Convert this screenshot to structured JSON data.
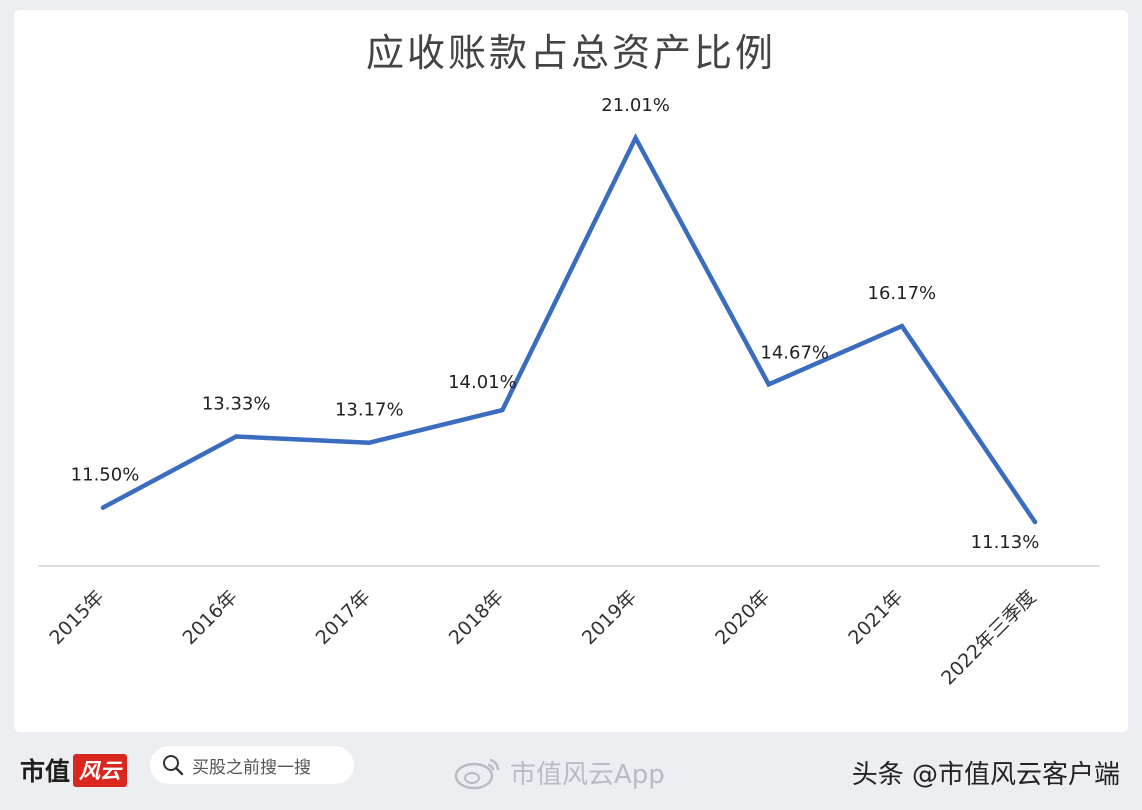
{
  "chart_data": {
    "type": "line",
    "title": "应收账款占总资产比例",
    "categories": [
      "2015年",
      "2016年",
      "2017年",
      "2018年",
      "2019年",
      "2020年",
      "2021年",
      "2022年三季度"
    ],
    "series": [
      {
        "values": [
          11.5,
          13.33,
          13.17,
          14.01,
          21.01,
          14.67,
          16.17,
          11.13
        ],
        "labels": [
          "11.50%",
          "13.33%",
          "13.17%",
          "14.01%",
          "21.01%",
          "14.67%",
          "16.17%",
          "11.13%"
        ],
        "color": "#3a6cc0"
      }
    ],
    "ylim": [
      7.5,
      22.5
    ],
    "grid": false,
    "legend": "none"
  },
  "footer": {
    "brand": "市值",
    "brand_badge": "风云",
    "search_text": "买股之前搜一搜",
    "watermark": "市值风云App",
    "source": "头条 @市值风云客户端"
  },
  "colors": {
    "line": "#3a6cc0",
    "axis": "#cfd3da",
    "brand_red": "#d9271f"
  }
}
